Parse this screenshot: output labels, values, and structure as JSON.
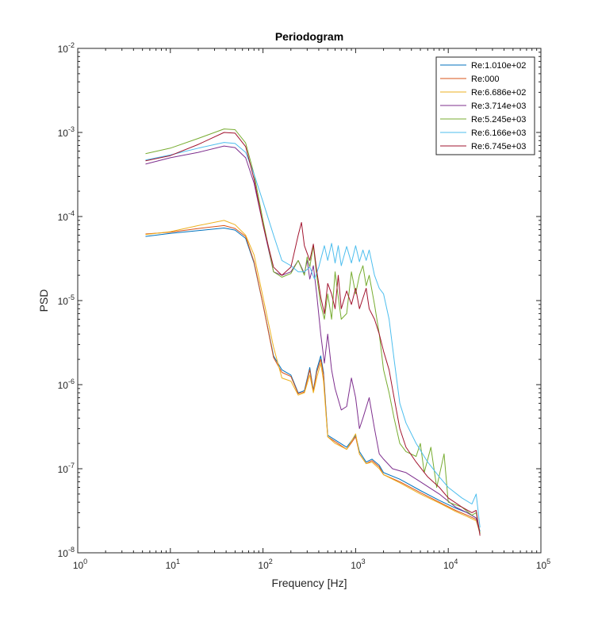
{
  "chart_data": {
    "type": "line",
    "title": "Periodogram",
    "xlabel": "Frequency [Hz]",
    "ylabel": "PSD",
    "x_scale": "log",
    "y_scale": "log",
    "xlim": [
      1,
      100000
    ],
    "ylim": [
      1e-08,
      0.01
    ],
    "grid": false,
    "legend_position": "top-right",
    "x_ticks": [
      {
        "base": "10",
        "exp": "0"
      },
      {
        "base": "10",
        "exp": "1"
      },
      {
        "base": "10",
        "exp": "2"
      },
      {
        "base": "10",
        "exp": "3"
      },
      {
        "base": "10",
        "exp": "4"
      },
      {
        "base": "10",
        "exp": "5"
      }
    ],
    "y_ticks": [
      {
        "base": "10",
        "exp": "-8"
      },
      {
        "base": "10",
        "exp": "-7"
      },
      {
        "base": "10",
        "exp": "-6"
      },
      {
        "base": "10",
        "exp": "-5"
      },
      {
        "base": "10",
        "exp": "-4"
      },
      {
        "base": "10",
        "exp": "-3"
      },
      {
        "base": "10",
        "exp": "-2"
      }
    ],
    "series": [
      {
        "name": "Re:1.010e+02",
        "color": "#0072BD",
        "points": [
          [
            5.4,
            5.8e-05
          ],
          [
            10,
            6.3e-05
          ],
          [
            20,
            6.8e-05
          ],
          [
            38,
            7.3e-05
          ],
          [
            50,
            6.9e-05
          ],
          [
            65,
            5.5e-05
          ],
          [
            80,
            2.8e-05
          ],
          [
            100,
            9e-06
          ],
          [
            130,
            2.2e-06
          ],
          [
            160,
            1.5e-06
          ],
          [
            200,
            1.3e-06
          ],
          [
            240,
            8e-07
          ],
          [
            280,
            8.5e-07
          ],
          [
            320,
            1.6e-06
          ],
          [
            350,
            8.5e-07
          ],
          [
            380,
            1.5e-06
          ],
          [
            420,
            2.2e-06
          ],
          [
            450,
            1.4e-06
          ],
          [
            500,
            2.5e-07
          ],
          [
            600,
            2.2e-07
          ],
          [
            800,
            1.8e-07
          ],
          [
            1000,
            2.5e-07
          ],
          [
            1100,
            1.6e-07
          ],
          [
            1300,
            1.2e-07
          ],
          [
            1500,
            1.3e-07
          ],
          [
            1800,
            1.1e-07
          ],
          [
            2000,
            9e-08
          ],
          [
            3000,
            7.5e-08
          ],
          [
            5000,
            5.5e-08
          ],
          [
            8000,
            4.2e-08
          ],
          [
            12000,
            3.4e-08
          ],
          [
            16000,
            3e-08
          ],
          [
            20000,
            2.6e-08
          ],
          [
            22000,
            1.8e-08
          ]
        ]
      },
      {
        "name": "Re:000",
        "color": "#D95319",
        "points": [
          [
            5.4,
            6.2e-05
          ],
          [
            10,
            6.5e-05
          ],
          [
            20,
            7.2e-05
          ],
          [
            38,
            7.8e-05
          ],
          [
            50,
            7.2e-05
          ],
          [
            65,
            5.8e-05
          ],
          [
            80,
            2.9e-05
          ],
          [
            100,
            9e-06
          ],
          [
            130,
            2.1e-06
          ],
          [
            160,
            1.4e-06
          ],
          [
            200,
            1.25e-06
          ],
          [
            240,
            7.8e-07
          ],
          [
            280,
            8.2e-07
          ],
          [
            320,
            1.5e-06
          ],
          [
            350,
            8.3e-07
          ],
          [
            380,
            1.4e-06
          ],
          [
            420,
            2e-06
          ],
          [
            450,
            1.3e-06
          ],
          [
            500,
            2.4e-07
          ],
          [
            600,
            2.1e-07
          ],
          [
            800,
            1.7e-07
          ],
          [
            1000,
            2.4e-07
          ],
          [
            1100,
            1.5e-07
          ],
          [
            1300,
            1.15e-07
          ],
          [
            1500,
            1.25e-07
          ],
          [
            1800,
            1.05e-07
          ],
          [
            2000,
            8.5e-08
          ],
          [
            3000,
            7e-08
          ],
          [
            5000,
            5.2e-08
          ],
          [
            8000,
            4e-08
          ],
          [
            12000,
            3.2e-08
          ],
          [
            16000,
            2.8e-08
          ],
          [
            20000,
            2.5e-08
          ],
          [
            22000,
            1.7e-08
          ]
        ]
      },
      {
        "name": "Re:6.686e+02",
        "color": "#EDB120",
        "points": [
          [
            5.4,
            6.1e-05
          ],
          [
            10,
            6.6e-05
          ],
          [
            20,
            7.8e-05
          ],
          [
            38,
            9e-05
          ],
          [
            50,
            8e-05
          ],
          [
            65,
            6e-05
          ],
          [
            80,
            3.5e-05
          ],
          [
            100,
            1.1e-05
          ],
          [
            130,
            2.8e-06
          ],
          [
            160,
            1.2e-06
          ],
          [
            200,
            1.1e-06
          ],
          [
            240,
            7.5e-07
          ],
          [
            280,
            8e-07
          ],
          [
            320,
            1.3e-06
          ],
          [
            350,
            8e-07
          ],
          [
            380,
            1.2e-06
          ],
          [
            420,
            1.8e-06
          ],
          [
            450,
            1.1e-06
          ],
          [
            500,
            2.4e-07
          ],
          [
            600,
            2e-07
          ],
          [
            800,
            1.7e-07
          ],
          [
            1000,
            2.6e-07
          ],
          [
            1100,
            1.5e-07
          ],
          [
            1300,
            1.15e-07
          ],
          [
            1500,
            1.2e-07
          ],
          [
            1800,
            1e-07
          ],
          [
            2000,
            8.5e-08
          ],
          [
            3000,
            6.8e-08
          ],
          [
            5000,
            5e-08
          ],
          [
            8000,
            3.9e-08
          ],
          [
            12000,
            3.1e-08
          ],
          [
            16000,
            2.7e-08
          ],
          [
            20000,
            2.4e-08
          ],
          [
            22000,
            1.7e-08
          ]
        ]
      },
      {
        "name": "Re:3.714e+03",
        "color": "#7E2F8E",
        "points": [
          [
            5.4,
            0.00042
          ],
          [
            10,
            0.0005
          ],
          [
            20,
            0.00058
          ],
          [
            38,
            0.00069
          ],
          [
            50,
            0.00066
          ],
          [
            65,
            0.0005
          ],
          [
            80,
            0.00025
          ],
          [
            100,
            8e-05
          ],
          [
            130,
            2.2e-05
          ],
          [
            160,
            2e-05
          ],
          [
            200,
            2.2e-05
          ],
          [
            240,
            3e-05
          ],
          [
            280,
            2.1e-05
          ],
          [
            300,
            3e-05
          ],
          [
            320,
            1.8e-05
          ],
          [
            350,
            2.6e-05
          ],
          [
            380,
            1.2e-05
          ],
          [
            420,
            4e-06
          ],
          [
            460,
            1.8e-06
          ],
          [
            500,
            4e-06
          ],
          [
            550,
            1.5e-06
          ],
          [
            600,
            9e-07
          ],
          [
            700,
            5e-07
          ],
          [
            800,
            5.5e-07
          ],
          [
            900,
            1.2e-06
          ],
          [
            1000,
            7e-07
          ],
          [
            1100,
            3e-07
          ],
          [
            1200,
            4e-07
          ],
          [
            1400,
            7e-07
          ],
          [
            1600,
            3e-07
          ],
          [
            1800,
            1.5e-07
          ],
          [
            2000,
            1.3e-07
          ],
          [
            2500,
            1e-07
          ],
          [
            3500,
            9e-08
          ],
          [
            5000,
            7e-08
          ],
          [
            8000,
            5e-08
          ],
          [
            12000,
            3.5e-08
          ],
          [
            16000,
            3e-08
          ],
          [
            20000,
            2.6e-08
          ],
          [
            22000,
            1.7e-08
          ]
        ]
      },
      {
        "name": "Re:5.245e+03",
        "color": "#77AC30",
        "points": [
          [
            5.4,
            0.00056
          ],
          [
            10,
            0.00065
          ],
          [
            20,
            0.00085
          ],
          [
            38,
            0.0011
          ],
          [
            50,
            0.00108
          ],
          [
            65,
            0.00075
          ],
          [
            80,
            0.00032
          ],
          [
            100,
            9e-05
          ],
          [
            130,
            2.2e-05
          ],
          [
            160,
            1.9e-05
          ],
          [
            200,
            2.1e-05
          ],
          [
            240,
            3e-05
          ],
          [
            280,
            2e-05
          ],
          [
            300,
            3.3e-05
          ],
          [
            320,
            2.5e-05
          ],
          [
            350,
            4.5e-05
          ],
          [
            380,
            2e-05
          ],
          [
            420,
            9e-06
          ],
          [
            460,
            6e-06
          ],
          [
            500,
            1.2e-05
          ],
          [
            550,
            6e-06
          ],
          [
            600,
            2.2e-05
          ],
          [
            650,
            1.1e-05
          ],
          [
            700,
            6e-06
          ],
          [
            800,
            7e-06
          ],
          [
            900,
            2.2e-05
          ],
          [
            1000,
            1.2e-05
          ],
          [
            1100,
            2e-05
          ],
          [
            1200,
            2.6e-05
          ],
          [
            1300,
            1.5e-05
          ],
          [
            1400,
            2e-05
          ],
          [
            1600,
            9e-06
          ],
          [
            1800,
            4e-06
          ],
          [
            2000,
            1.5e-06
          ],
          [
            2300,
            8e-07
          ],
          [
            2600,
            4e-07
          ],
          [
            3000,
            2e-07
          ],
          [
            3500,
            1.6e-07
          ],
          [
            4500,
            1.4e-07
          ],
          [
            5000,
            2e-07
          ],
          [
            5500,
            9e-08
          ],
          [
            6500,
            1.8e-07
          ],
          [
            7500,
            6e-08
          ],
          [
            9000,
            1.5e-07
          ],
          [
            10000,
            4e-08
          ],
          [
            14000,
            3.5e-08
          ],
          [
            18000,
            2.8e-08
          ],
          [
            20000,
            3e-08
          ],
          [
            22000,
            1.7e-08
          ]
        ]
      },
      {
        "name": "Re:6.166e+03",
        "color": "#4DBEEE",
        "points": [
          [
            5.4,
            0.00047
          ],
          [
            10,
            0.00054
          ],
          [
            20,
            0.00065
          ],
          [
            38,
            0.00076
          ],
          [
            50,
            0.00074
          ],
          [
            65,
            0.00058
          ],
          [
            80,
            0.00032
          ],
          [
            100,
            0.00015
          ],
          [
            130,
            6e-05
          ],
          [
            160,
            3e-05
          ],
          [
            200,
            2.6e-05
          ],
          [
            240,
            2.2e-05
          ],
          [
            280,
            2.2e-05
          ],
          [
            320,
            2.5e-05
          ],
          [
            360,
            1.8e-05
          ],
          [
            400,
            2.5e-05
          ],
          [
            460,
            4.5e-05
          ],
          [
            500,
            3e-05
          ],
          [
            550,
            4.8e-05
          ],
          [
            600,
            2.8e-05
          ],
          [
            650,
            4.5e-05
          ],
          [
            700,
            2.6e-05
          ],
          [
            800,
            4.4e-05
          ],
          [
            900,
            2.8e-05
          ],
          [
            1000,
            4.5e-05
          ],
          [
            1100,
            2.9e-05
          ],
          [
            1200,
            4e-05
          ],
          [
            1300,
            3e-05
          ],
          [
            1400,
            4e-05
          ],
          [
            1600,
            2e-05
          ],
          [
            1800,
            1.4e-05
          ],
          [
            2000,
            1.2e-05
          ],
          [
            2300,
            6e-06
          ],
          [
            2600,
            2e-06
          ],
          [
            3000,
            6e-07
          ],
          [
            3500,
            3.5e-07
          ],
          [
            4500,
            2e-07
          ],
          [
            6000,
            1.2e-07
          ],
          [
            8000,
            8e-08
          ],
          [
            10000,
            6e-08
          ],
          [
            14000,
            4.5e-08
          ],
          [
            18000,
            3.8e-08
          ],
          [
            20000,
            5e-08
          ],
          [
            22000,
            2e-08
          ]
        ]
      },
      {
        "name": "Re:6.745e+03",
        "color": "#A2142F",
        "points": [
          [
            5.4,
            0.00046
          ],
          [
            10,
            0.00053
          ],
          [
            20,
            0.00072
          ],
          [
            38,
            0.001
          ],
          [
            50,
            0.00098
          ],
          [
            65,
            0.00068
          ],
          [
            80,
            0.00028
          ],
          [
            100,
            8e-05
          ],
          [
            130,
            2.5e-05
          ],
          [
            160,
            2e-05
          ],
          [
            200,
            2.5e-05
          ],
          [
            240,
            6e-05
          ],
          [
            260,
            8.5e-05
          ],
          [
            280,
            4.5e-05
          ],
          [
            320,
            3e-05
          ],
          [
            350,
            4.7e-05
          ],
          [
            380,
            2.3e-05
          ],
          [
            420,
            1.1e-05
          ],
          [
            460,
            7e-06
          ],
          [
            500,
            1.6e-05
          ],
          [
            550,
            1.2e-05
          ],
          [
            600,
            8e-06
          ],
          [
            650,
            2e-05
          ],
          [
            700,
            8e-06
          ],
          [
            800,
            1.3e-05
          ],
          [
            900,
            9e-06
          ],
          [
            1000,
            1.4e-05
          ],
          [
            1100,
            8e-06
          ],
          [
            1300,
            1.4e-05
          ],
          [
            1400,
            8e-06
          ],
          [
            1600,
            6e-06
          ],
          [
            1800,
            4e-06
          ],
          [
            2000,
            2.5e-06
          ],
          [
            2300,
            1.5e-06
          ],
          [
            2600,
            7e-07
          ],
          [
            3000,
            3e-07
          ],
          [
            3500,
            1.8e-07
          ],
          [
            4500,
            1.2e-07
          ],
          [
            6000,
            8e-08
          ],
          [
            8000,
            6e-08
          ],
          [
            10000,
            4.5e-08
          ],
          [
            14000,
            3.5e-08
          ],
          [
            18000,
            3e-08
          ],
          [
            20000,
            3.2e-08
          ],
          [
            22000,
            1.6e-08
          ]
        ]
      }
    ]
  }
}
